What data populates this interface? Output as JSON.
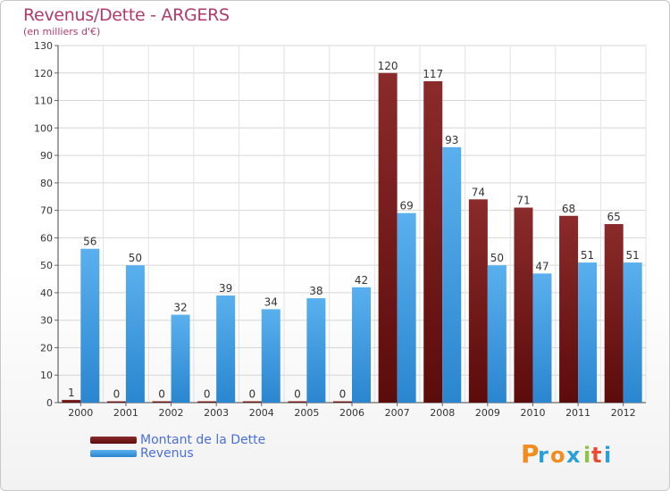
{
  "header": {
    "title": "Revenus/Dette - ARGERS",
    "subtitle": "(en milliers d'€)"
  },
  "chart_data": {
    "type": "bar",
    "title": "Revenus/Dette - ARGERS",
    "subtitle": "(en milliers d'€)",
    "xlabel": "",
    "ylabel": "",
    "ylim": [
      0,
      130
    ],
    "yticks": [
      "0",
      "10",
      "20",
      "30",
      "40",
      "50",
      "60",
      "70",
      "80",
      "90",
      "100",
      "110",
      "120",
      "130"
    ],
    "grid": true,
    "legend_position": "bottom-left",
    "categories": [
      "2000",
      "2001",
      "2002",
      "2003",
      "2004",
      "2005",
      "2006",
      "2007",
      "2008",
      "2009",
      "2010",
      "2011",
      "2012"
    ],
    "series": [
      {
        "name": "Montant de la Dette",
        "color": "#7a1a1a",
        "values": [
          1,
          0,
          0,
          0,
          0,
          0,
          0,
          120,
          117,
          74,
          71,
          68,
          65
        ],
        "labels": [
          "1",
          "0",
          "0",
          "0",
          "0",
          "0",
          "0",
          "120",
          "117",
          "74",
          "71",
          "68",
          "65"
        ]
      },
      {
        "name": "Revenus",
        "color": "#4aa3e6",
        "values": [
          56,
          50,
          32,
          39,
          34,
          38,
          42,
          69,
          93,
          50,
          47,
          51,
          51
        ],
        "labels": [
          "56",
          "50",
          "32",
          "39",
          "34",
          "38",
          "42",
          "69",
          "93",
          "50",
          "47",
          "51",
          "51"
        ]
      }
    ]
  },
  "legend": {
    "items": [
      {
        "label": "Montant de la Dette",
        "color": "#7a1a1a"
      },
      {
        "label": "Revenus",
        "color": "#4aa3e6"
      }
    ]
  },
  "logo": {
    "text": "Proxiti",
    "letters": [
      "P",
      "r",
      "o",
      "x",
      "i",
      "t",
      "i"
    ],
    "colors": [
      "#f28c1e",
      "#2aa0d8",
      "#f28c1e",
      "#2aa0d8",
      "#8cc63f",
      "#e94b35",
      "#2aa0d8"
    ]
  }
}
